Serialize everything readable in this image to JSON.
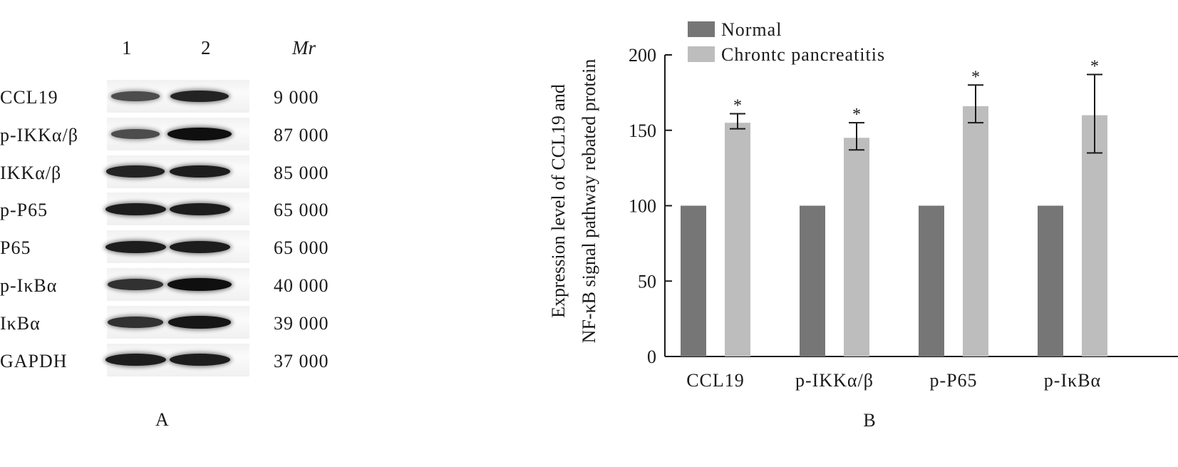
{
  "panel_a": {
    "letter": "A",
    "lane_labels": [
      "1",
      "2"
    ],
    "mr_header": "Mr",
    "rows": [
      {
        "protein": "CCL19",
        "mr": "9 000",
        "bands": [
          0.55,
          0.85
        ]
      },
      {
        "protein": "p-IKKα/β",
        "mr": "87 000",
        "bands": [
          0.55,
          1.0
        ]
      },
      {
        "protein": "IKKα/β",
        "mr": "85 000",
        "bands": [
          0.85,
          0.9
        ]
      },
      {
        "protein": "p-P65",
        "mr": "65 000",
        "bands": [
          0.9,
          0.9
        ]
      },
      {
        "protein": "P65",
        "mr": "65 000",
        "bands": [
          0.9,
          0.9
        ]
      },
      {
        "protein": "p-IκBα",
        "mr": "40 000",
        "bands": [
          0.75,
          1.0
        ]
      },
      {
        "protein": "IκBα",
        "mr": "39 000",
        "bands": [
          0.75,
          0.95
        ]
      },
      {
        "protein": "GAPDH",
        "mr": "37 000",
        "bands": [
          0.9,
          0.9
        ]
      }
    ]
  },
  "chart_data": {
    "type": "bar",
    "panel_letter": "B",
    "categories": [
      "CCL19",
      "p-IKKα/β",
      "p-P65",
      "p-IκBα"
    ],
    "series": [
      {
        "name": "Normal",
        "color": "#767676",
        "values": [
          100,
          100,
          100,
          100
        ]
      },
      {
        "name": "Chrontc pancreatitis",
        "color": "#bdbdbd",
        "values": [
          155,
          145,
          166,
          160
        ],
        "error_low": [
          151,
          137,
          155,
          135
        ],
        "error_high": [
          161,
          155,
          180,
          187
        ],
        "annotations": [
          "*",
          "*",
          "*",
          "*"
        ]
      }
    ],
    "ylabel_lines": [
      "Expression level of CCL19 and",
      "NF-κB signal pathway rebated protein"
    ],
    "xlabel": "",
    "ylim": [
      0,
      200
    ],
    "yticks": [
      0,
      50,
      100,
      150,
      200
    ],
    "legend_position": "top-left",
    "grid": false
  }
}
